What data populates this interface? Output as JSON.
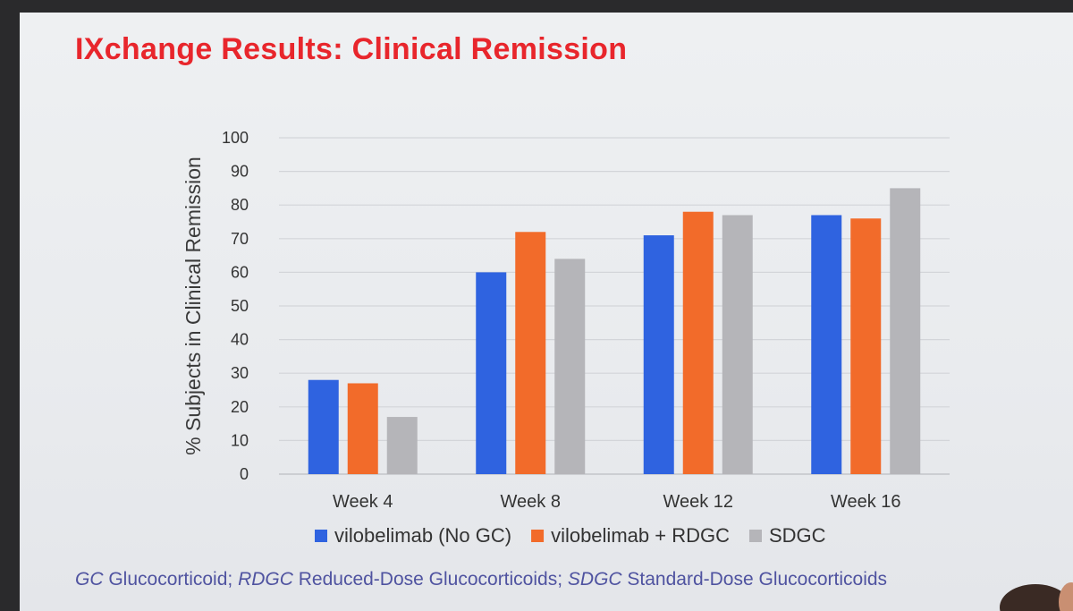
{
  "slide": {
    "title": "IXchange Results: Clinical Remission",
    "footnote": [
      {
        "abbr": "GC",
        "text": " Glucocorticoid; "
      },
      {
        "abbr": "RDGC",
        "text": " Reduced-Dose Glucocorticoids; "
      },
      {
        "abbr": "SDGC",
        "text": " Standard-Dose Glucocorticoids"
      }
    ]
  },
  "chart_data": {
    "type": "bar",
    "title": "",
    "xlabel": "",
    "ylabel": "% Subjects in Clinical Remission",
    "ylim": [
      0,
      100
    ],
    "yticks": [
      0,
      10,
      20,
      30,
      40,
      50,
      60,
      70,
      80,
      90,
      100
    ],
    "grid": true,
    "legend_position": "bottom",
    "categories": [
      "Week 4",
      "Week 8",
      "Week 12",
      "Week 16"
    ],
    "series": [
      {
        "name": "vilobelimab (No GC)",
        "color": "#2f63e0",
        "values": [
          28,
          60,
          71,
          77
        ]
      },
      {
        "name": "vilobelimab + RDGC",
        "color": "#f26b2a",
        "values": [
          27,
          72,
          78,
          76
        ]
      },
      {
        "name": "SDGC",
        "color": "#b5b5b9",
        "values": [
          17,
          64,
          77,
          85
        ]
      }
    ]
  }
}
